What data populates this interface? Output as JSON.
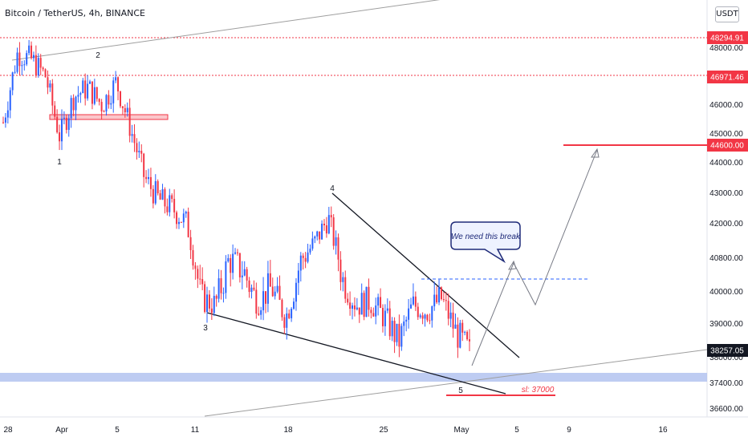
{
  "header": {
    "symbol_title": "Bitcoin / TetherUS, 4h, BINANCE",
    "currency_button": "USDT"
  },
  "colors": {
    "up": "#2962ff",
    "down": "#f23645",
    "support_zone": "#b3c3f0",
    "resistance_line": "#f23645",
    "trendline": "#131722",
    "channel_line": "#9e9e9e",
    "projection": "#787b86",
    "callout_border": "#1e2a78"
  },
  "chart_data": {
    "type": "candlestick",
    "symbol": "BTCUSDT",
    "exchange": "BINANCE",
    "interval": "4h",
    "x_axis": {
      "labels": [
        "28",
        "Apr",
        "5",
        "11",
        "18",
        "25",
        "May",
        "5",
        "9",
        "16"
      ]
    },
    "y_axis": {
      "labels": [
        48000,
        47000,
        46000,
        45000,
        44000,
        43000,
        42000,
        40800,
        40000,
        39000,
        38000,
        37400,
        36600
      ],
      "range": [
        36300,
        48900
      ]
    },
    "price_tags": [
      {
        "value": 48294.91,
        "label": "48294.91",
        "style": "red-dotted"
      },
      {
        "value": 46971.46,
        "label": "46971.46",
        "style": "red-dotted"
      },
      {
        "value": 44600.0,
        "label": "44600.00",
        "style": "red-solid"
      },
      {
        "value": 38257.05,
        "label": "38257.05",
        "style": "current-price"
      }
    ],
    "wave_labels": [
      "1",
      "2",
      "3",
      "4",
      "5"
    ],
    "annotations": {
      "callout": "We need this break",
      "stop_loss": "sl: 37000"
    },
    "close_path": [
      {
        "date": "Mar 28",
        "close": 45400
      },
      {
        "date": "Mar 29",
        "close": 47800
      },
      {
        "date": "Mar 30",
        "close": 47600
      },
      {
        "date": "Mar 31",
        "close": 47000
      },
      {
        "date": "Apr 1",
        "close": 44900
      },
      {
        "date": "Apr 2",
        "close": 46300
      },
      {
        "date": "Apr 4",
        "close": 46600
      },
      {
        "date": "Apr 5",
        "close": 46000
      },
      {
        "date": "Apr 6",
        "close": 46800
      },
      {
        "date": "Apr 7",
        "close": 45200
      },
      {
        "date": "Apr 8",
        "close": 43500
      },
      {
        "date": "Apr 9",
        "close": 42800
      },
      {
        "date": "Apr 10",
        "close": 42500
      },
      {
        "date": "Apr 11",
        "close": 42000
      },
      {
        "date": "Apr 12",
        "close": 39800
      },
      {
        "date": "Apr 13",
        "close": 39600
      },
      {
        "date": "Apr 14",
        "close": 40800
      },
      {
        "date": "Apr 15",
        "close": 40500
      },
      {
        "date": "Apr 16",
        "close": 39700
      },
      {
        "date": "Apr 17",
        "close": 40100
      },
      {
        "date": "Apr 18",
        "close": 39200
      },
      {
        "date": "Apr 19",
        "close": 40700
      },
      {
        "date": "Apr 20",
        "close": 41300
      },
      {
        "date": "Apr 21",
        "close": 42200
      },
      {
        "date": "Apr 22",
        "close": 40300
      },
      {
        "date": "Apr 23",
        "close": 39600
      },
      {
        "date": "Apr 24",
        "close": 39700
      },
      {
        "date": "Apr 25",
        "close": 39200
      },
      {
        "date": "Apr 26",
        "close": 38500
      },
      {
        "date": "Apr 27",
        "close": 39600
      },
      {
        "date": "Apr 28",
        "close": 39400
      },
      {
        "date": "Apr 29",
        "close": 39800
      },
      {
        "date": "Apr 30",
        "close": 38800
      },
      {
        "date": "May 1",
        "close": 38200
      }
    ],
    "grid": false,
    "legend": "none"
  }
}
